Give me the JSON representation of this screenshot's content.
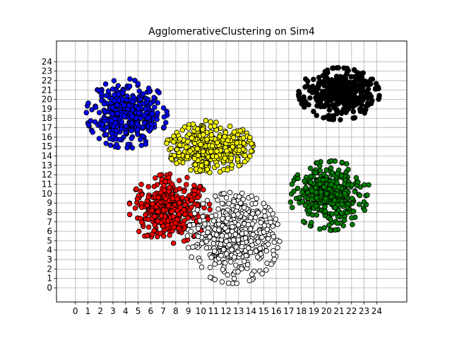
{
  "chart_data": {
    "type": "scatter",
    "title": "AgglomerativeClustering on Sim4",
    "xlabel": "",
    "ylabel": "",
    "xlim": [
      -1.5,
      26.4
    ],
    "ylim": [
      -1.5,
      26.2
    ],
    "xticks": [
      0,
      1,
      2,
      3,
      4,
      5,
      6,
      7,
      8,
      9,
      10,
      11,
      12,
      13,
      14,
      15,
      16,
      17,
      18,
      19,
      20,
      21,
      22,
      23,
      24
    ],
    "yticks": [
      0,
      1,
      2,
      3,
      4,
      5,
      6,
      7,
      8,
      9,
      10,
      11,
      12,
      13,
      14,
      15,
      16,
      17,
      18,
      19,
      20,
      21,
      22,
      23,
      24
    ],
    "grid": true,
    "legend": "none",
    "marker_edge_color": "#000000",
    "series": [
      {
        "color": "#0000ff",
        "center": [
          4.1,
          18.5
        ],
        "spread": [
          1.4,
          1.6
        ],
        "count": 380,
        "seed": 11
      },
      {
        "color": "#000000",
        "center": [
          21.0,
          20.6
        ],
        "spread": [
          1.4,
          1.2
        ],
        "count": 380,
        "seed": 23
      },
      {
        "color": "#ffff00",
        "center": [
          10.7,
          15.0
        ],
        "spread": [
          1.5,
          1.2
        ],
        "count": 380,
        "seed": 37
      },
      {
        "color": "#ff0000",
        "center": [
          7.5,
          8.4
        ],
        "spread": [
          1.4,
          1.6
        ],
        "count": 380,
        "seed": 41
      },
      {
        "color": "#008000",
        "center": [
          20.3,
          9.8
        ],
        "spread": [
          1.4,
          1.6
        ],
        "count": 380,
        "seed": 53
      },
      {
        "color": "#ffffff",
        "center": [
          12.6,
          5.3
        ],
        "spread": [
          1.6,
          2.1
        ],
        "count": 440,
        "seed": 67
      }
    ]
  }
}
